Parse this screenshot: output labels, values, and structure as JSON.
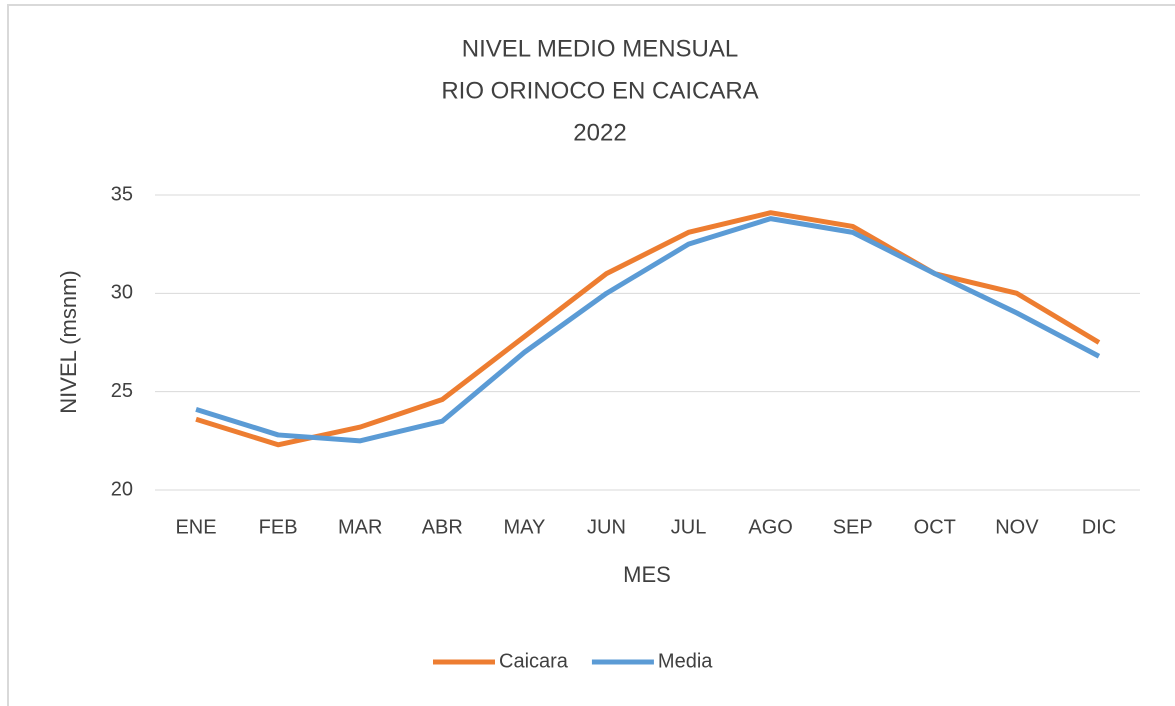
{
  "chart_data": {
    "type": "line",
    "title": [
      "NIVEL MEDIO MENSUAL",
      "RIO ORINOCO EN CAICARA",
      "2022"
    ],
    "x_label": "MES",
    "y_label": "NIVEL (msnm)",
    "categories": [
      "ENE",
      "FEB",
      "MAR",
      "ABR",
      "MAY",
      "JUN",
      "JUL",
      "AGO",
      "SEP",
      "OCT",
      "NOV",
      "DIC"
    ],
    "series": [
      {
        "name": "Caicara",
        "color": "#ed7d31",
        "values": [
          23.6,
          22.3,
          23.2,
          24.6,
          27.8,
          31.0,
          33.1,
          34.1,
          33.4,
          31.0,
          30.0,
          27.5
        ]
      },
      {
        "name": "Media",
        "color": "#5b9bd5",
        "values": [
          24.1,
          22.8,
          22.5,
          23.5,
          27.0,
          30.0,
          32.5,
          33.8,
          33.1,
          31.0,
          29.0,
          26.8
        ]
      }
    ],
    "ylim": [
      20,
      35
    ],
    "yticks": [
      20,
      25,
      30,
      35
    ],
    "grid": true,
    "legend": "bottom"
  }
}
